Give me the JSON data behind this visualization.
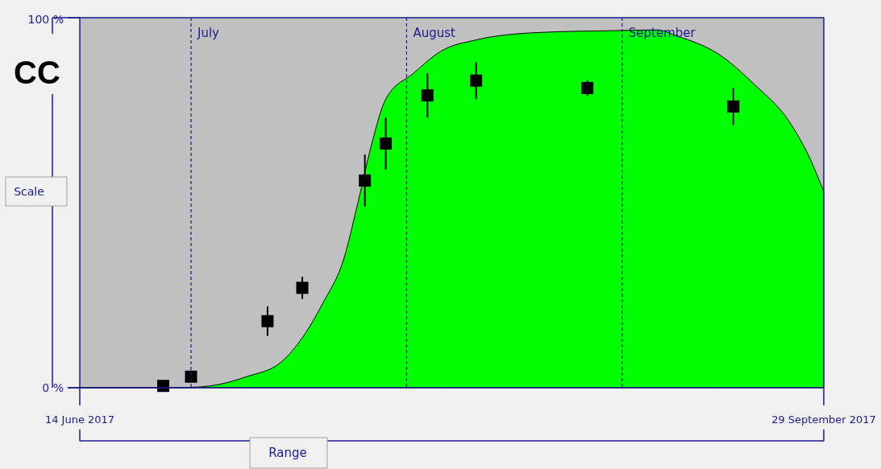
{
  "chart_data": {
    "type": "area",
    "title": "CC",
    "ylabel": "Scale",
    "xlabel": "Range",
    "xlim": [
      "2017-06-14",
      "2017-09-29"
    ],
    "xticks": [
      {
        "value": "2017-06-14",
        "label": "14 June 2017"
      },
      {
        "value": "2017-09-29",
        "label": "29 September 2017"
      }
    ],
    "ylim": [
      0,
      100
    ],
    "yticks": [
      {
        "value": 0,
        "label": "0 %"
      },
      {
        "value": 100,
        "label": "100 %"
      }
    ],
    "grid": false,
    "ref_lines": [
      {
        "axis": "x",
        "value": "2017-06-30",
        "label": "July",
        "color": "#1a1a8c",
        "line_style": "dashed"
      },
      {
        "axis": "x",
        "value": "2017-07-31",
        "label": "August",
        "color": "#1a1a8c",
        "line_style": "dashed"
      },
      {
        "axis": "x",
        "value": "2017-08-31",
        "label": "September",
        "color": "#1a1a8c",
        "line_style": "dashed"
      }
    ],
    "series": [
      {
        "color": "#00ff00",
        "x": [
          "2017-06-14",
          "2017-06-27",
          "2017-07-01",
          "2017-07-04",
          "2017-07-08",
          "2017-07-13",
          "2017-07-16",
          "2017-07-19",
          "2017-07-22",
          "2017-07-24",
          "2017-07-26",
          "2017-07-28",
          "2017-08-01",
          "2017-08-05",
          "2017-08-10",
          "2017-08-19",
          "2017-08-30",
          "2017-09-05",
          "2017-09-08",
          "2017-09-14",
          "2017-09-19",
          "2017-09-24",
          "2017-09-27",
          "2017-09-29"
        ],
        "values": [
          0,
          0,
          0.2,
          0.9,
          3,
          7,
          13.5,
          23,
          35,
          50,
          66,
          78,
          85,
          91,
          94,
          96,
          96.5,
          96.7,
          95,
          90,
          82,
          72,
          62,
          53
        ]
      },
      {
        "type": "scatter",
        "marker": "square",
        "color": "#000000",
        "x": [
          "2017-06-26",
          "2017-06-30",
          "2017-07-11",
          "2017-07-16",
          "2017-07-25",
          "2017-07-28",
          "2017-08-03",
          "2017-08-10",
          "2017-08-26",
          "2017-09-16"
        ],
        "values": [
          0.5,
          3,
          18,
          27,
          56,
          66,
          79,
          83,
          81,
          76
        ],
        "errors": [
          null,
          null,
          4,
          3,
          7,
          7,
          6,
          5,
          2,
          5
        ]
      }
    ]
  }
}
